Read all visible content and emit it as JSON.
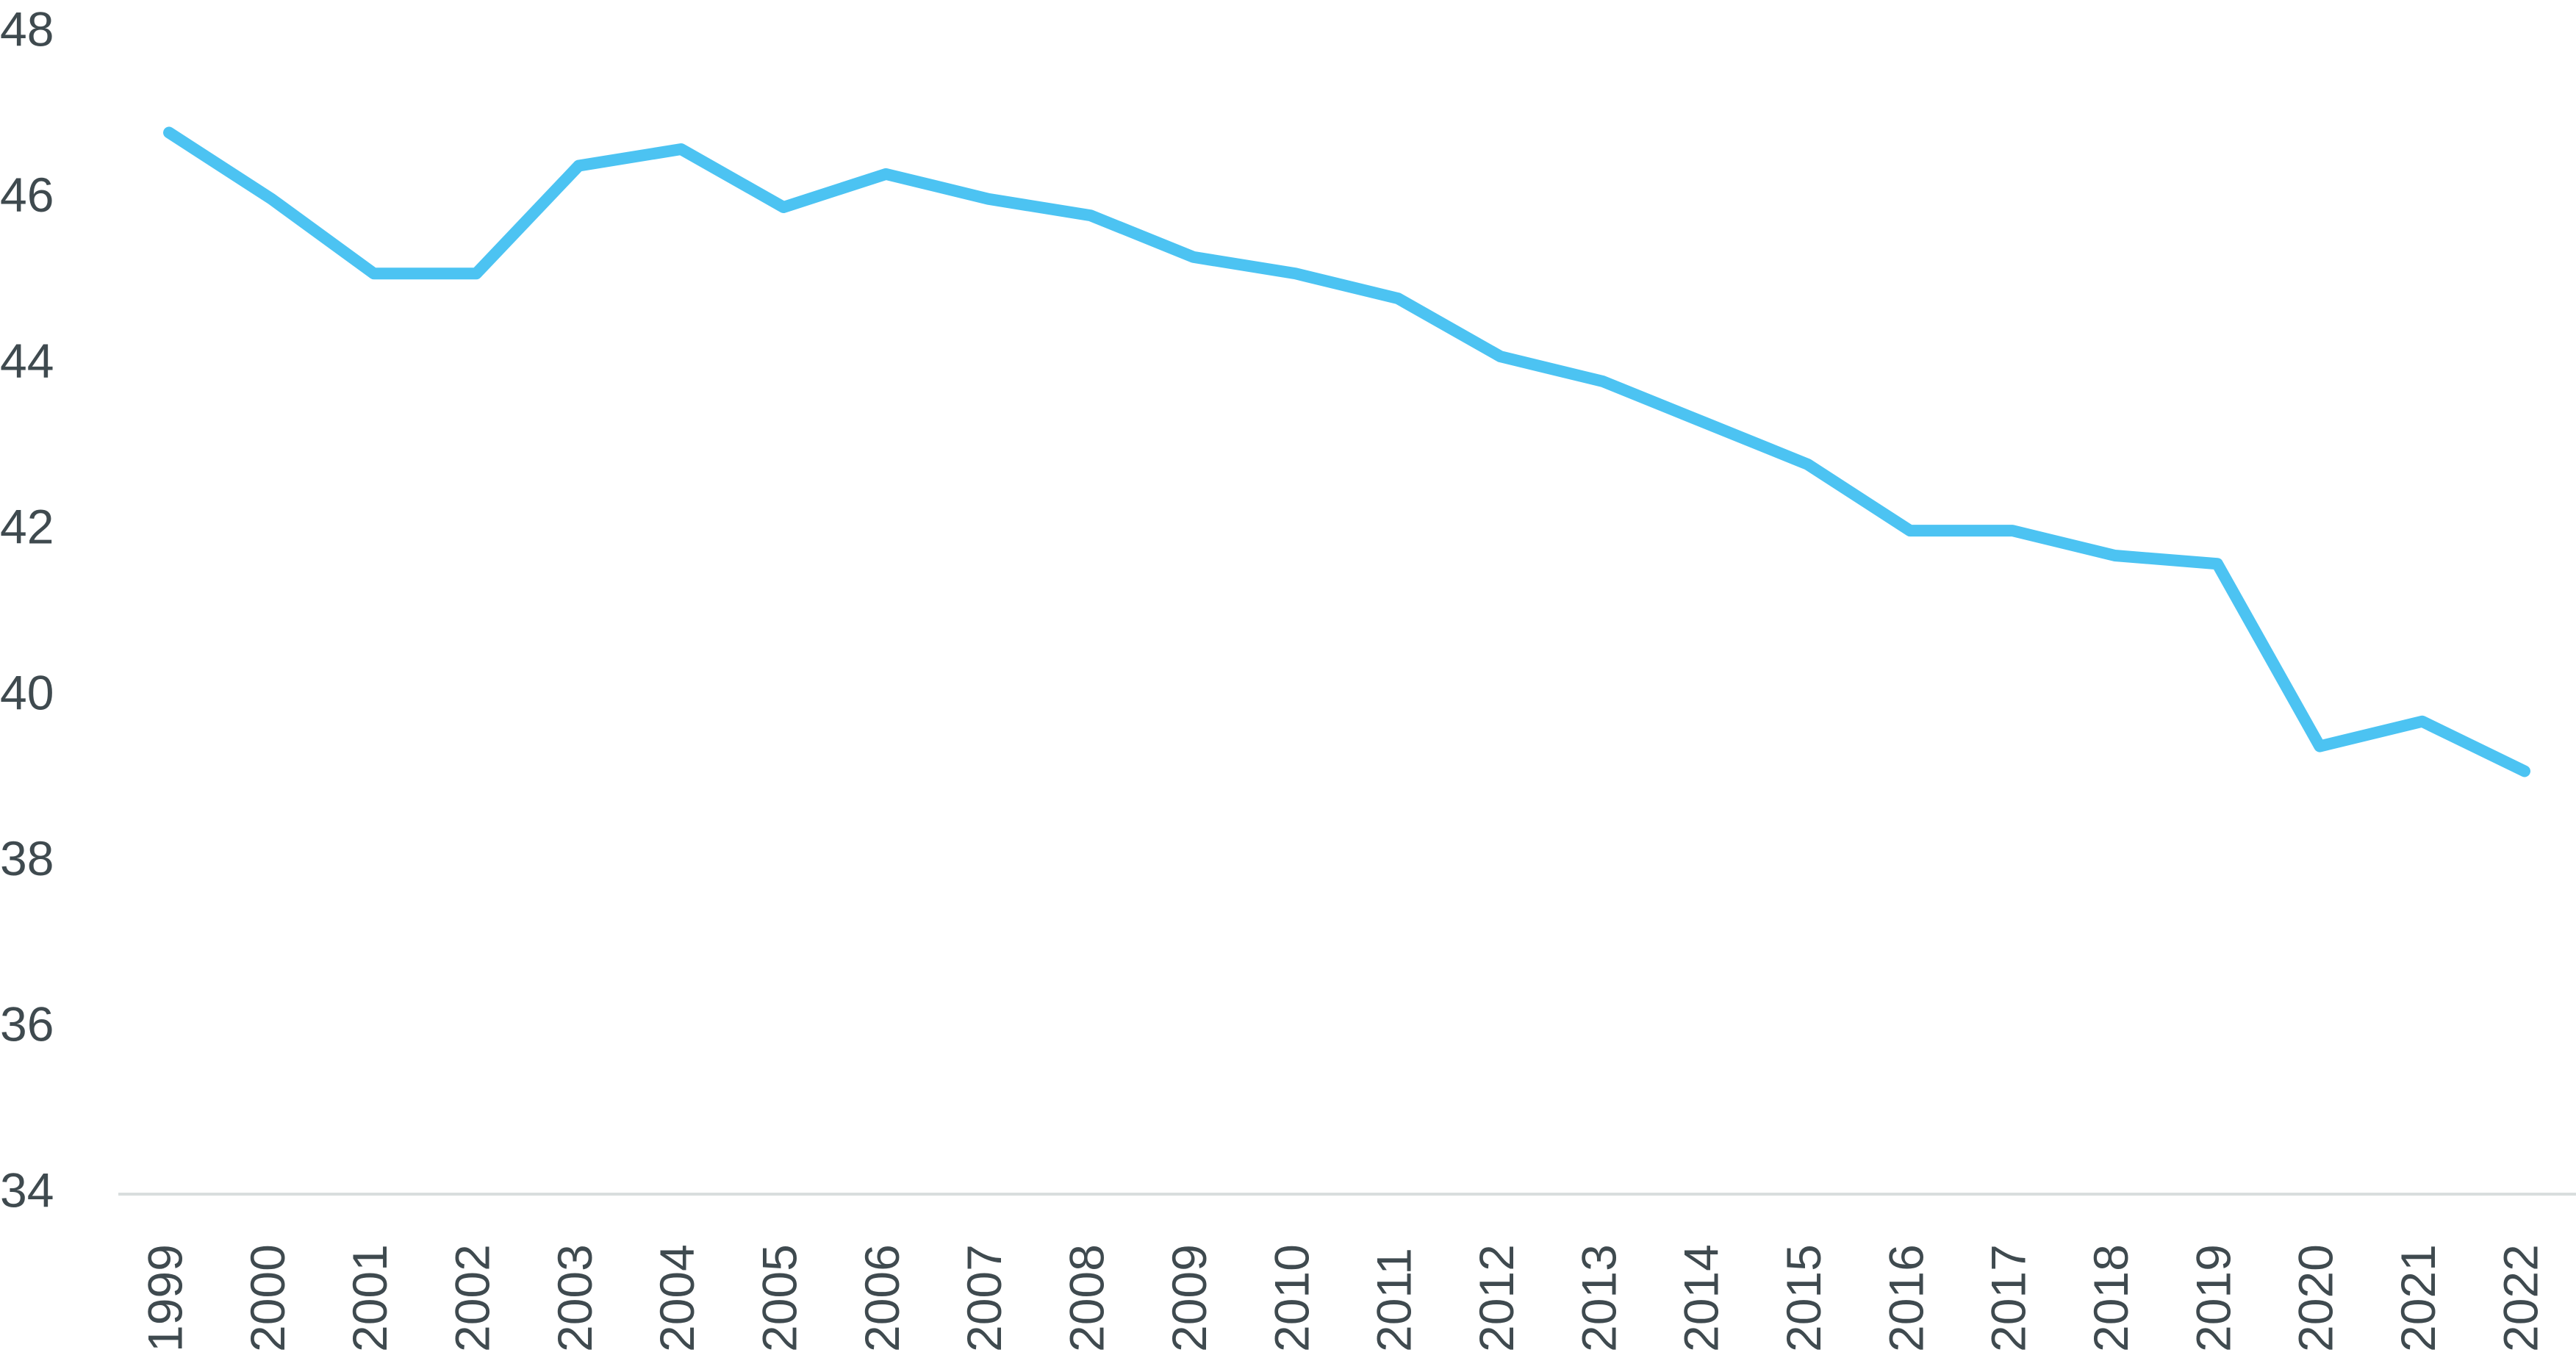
{
  "chart_data": {
    "type": "line",
    "categories": [
      "1999",
      "2000",
      "2001",
      "2002",
      "2003",
      "2004",
      "2005",
      "2006",
      "2007",
      "2008",
      "2009",
      "2010",
      "2011",
      "2012",
      "2013",
      "2014",
      "2015",
      "2016",
      "2017",
      "2018",
      "2019",
      "2020",
      "2021",
      "2022"
    ],
    "values": [
      46.8,
      46.0,
      45.1,
      45.1,
      46.4,
      46.6,
      45.9,
      46.3,
      46.0,
      45.8,
      45.3,
      45.1,
      44.8,
      44.1,
      43.8,
      43.3,
      42.8,
      42.0,
      42.0,
      41.7,
      41.6,
      39.4,
      39.7,
      39.1
    ],
    "color": "#4cc3f2",
    "ylim": [
      34,
      48
    ],
    "yticks": [
      34,
      36,
      38,
      40,
      42,
      44,
      46,
      48
    ],
    "grid": false
  }
}
